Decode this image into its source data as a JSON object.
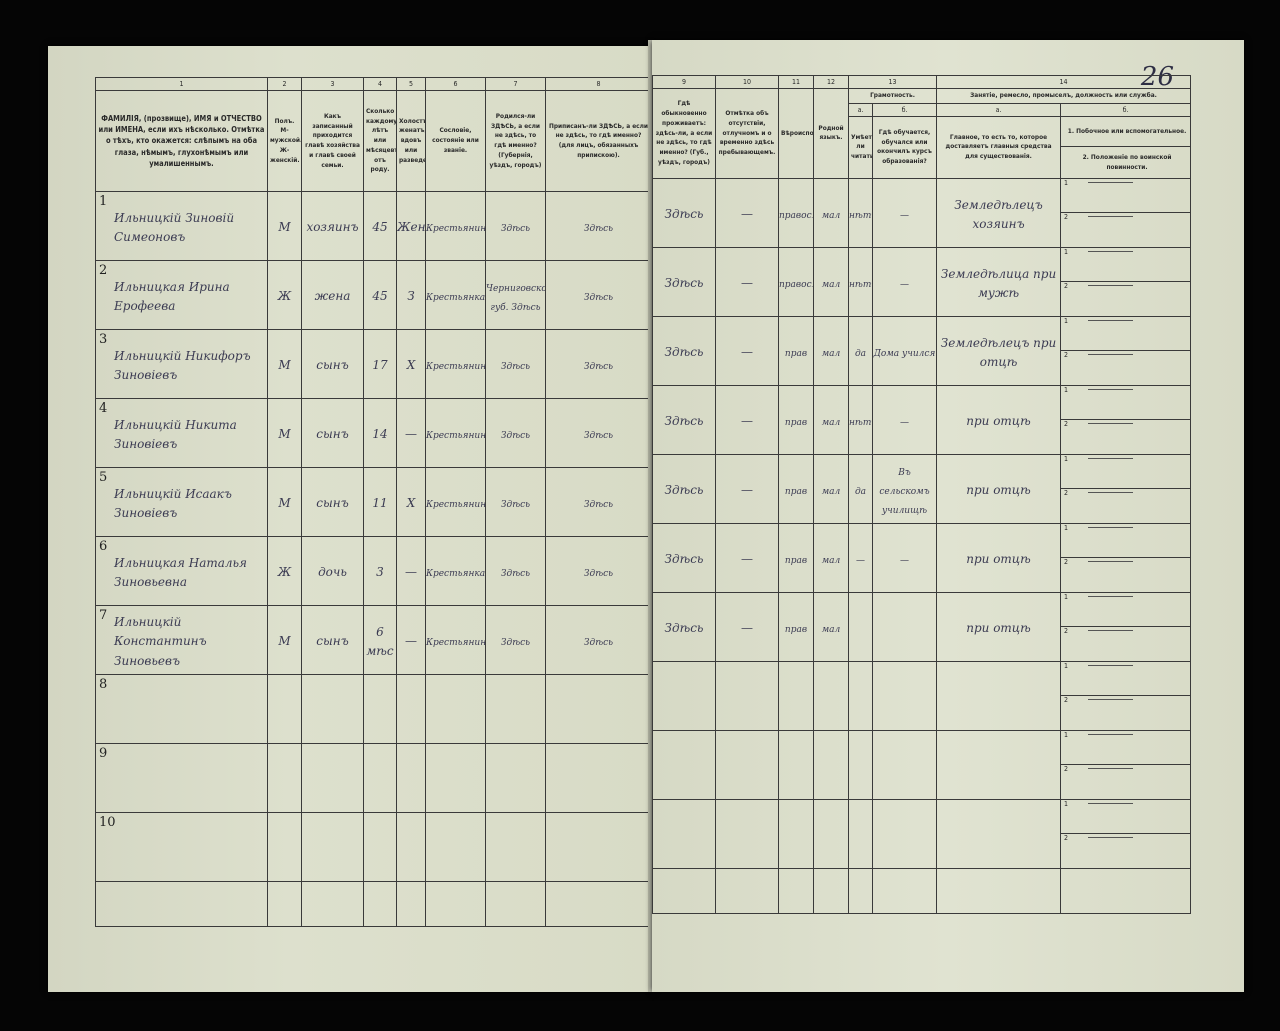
{
  "page_number": "26",
  "left_headers": [
    {
      "num": "1",
      "text": "ФАМИЛIЯ, (прозвище), ИМЯ и ОТЧЕСТВО или ИМЕНА, если ихъ нѣсколько. Отмѣтка о тѣхъ, кто окажется: слѣпымъ на оба глаза, нѣмымъ, глухонѣмымъ или умалишеннымъ."
    },
    {
      "num": "2",
      "text": "Полъ. М-мужской. Ж-женскiй."
    },
    {
      "num": "3",
      "text": "Какъ записанный приходится главѣ хозяйства и главѣ своей семьи."
    },
    {
      "num": "4",
      "text": "Сколько каждому лѣтъ или мѣсяцевъ отъ роду."
    },
    {
      "num": "5",
      "text": "Холостъ, женатъ, вдовъ или разведенъ."
    },
    {
      "num": "6",
      "text": "Сословiе, состоянiе или званiе."
    },
    {
      "num": "7",
      "text": "Родился-ли ЗДѢСЬ, а если не здѣсь, то гдѣ именно? (Губернiя, уѣздъ, городъ)"
    },
    {
      "num": "8",
      "text": "Приписанъ-ли ЗДѢСЬ, а если не здѣсь, то гдѣ именно? (для лицъ, обязанныхъ припискою)."
    }
  ],
  "right_headers": {
    "c9": {
      "num": "9",
      "text": "Гдѣ обыкновенно проживаетъ: здѣсь-ли, а если не здѣсь, то гдѣ именно? (Губ., уѣздъ, городъ)"
    },
    "c10": {
      "num": "10",
      "text": "Отмѣтка объ отсутствiи, отлучномъ и о временно здѣсь пребывающемъ."
    },
    "c11": {
      "num": "11",
      "text": "Вѣроисповѣданiе."
    },
    "c12": {
      "num": "12",
      "text": "Родной языкъ."
    },
    "c13": {
      "num": "13",
      "text": "Грамотность.",
      "a_label": "а.",
      "a_text": "Умѣетъ-ли читать?",
      "b_label": "б.",
      "b_text": "Гдѣ обучается, обучался или окончилъ курсъ образованiя?"
    },
    "c14": {
      "num": "14",
      "text": "Занятiе, ремесло, промыселъ, должность или служба.",
      "a_label": "а.",
      "a_text": "Главное, то есть то, которое доставляетъ главныя средства для существованiя.",
      "b_label": "б.",
      "b_text1": "1. Побочное или вспомогательное.",
      "b_text2": "2. Положенiе по воинской повинности."
    }
  },
  "rows": [
    {
      "n": "1",
      "name": "Ильницкiй Зиновiй Симеоновъ",
      "sex": "М",
      "relation": "хозяинъ",
      "age": "45",
      "marital": "Жен",
      "estate": "Крестьянинъ",
      "born": "Здѣсь",
      "registered": "Здѣсь",
      "lives": "Здѣсь",
      "absence": "—",
      "religion": "правосл",
      "language": "мал",
      "literate": "нѣтъ",
      "education": "—",
      "occupation": "Земледѣлецъ хозяинъ",
      "sub1": "1",
      "sub2": "2"
    },
    {
      "n": "2",
      "name": "Ильницкая Ирина Ерофеева",
      "sex": "Ж",
      "relation": "жена",
      "age": "45",
      "marital": "З",
      "estate": "Крестьянка",
      "born": "Черниговской губ. Здѣсь",
      "registered": "Здѣсь",
      "lives": "Здѣсь",
      "absence": "—",
      "religion": "правосл",
      "language": "мал",
      "literate": "нѣтъ",
      "education": "—",
      "occupation": "Земледѣлица при мужѣ",
      "sub1": "1",
      "sub2": "2"
    },
    {
      "n": "3",
      "name": "Ильницкiй Никифоръ Зиновiевъ",
      "sex": "М",
      "relation": "сынъ",
      "age": "17",
      "marital": "Х",
      "estate": "Крестьянинъ",
      "born": "Здѣсь",
      "registered": "Здѣсь",
      "lives": "Здѣсь",
      "absence": "—",
      "religion": "прав",
      "language": "мал",
      "literate": "да",
      "education": "Дома учился",
      "occupation": "Земледѣлецъ при отцѣ",
      "sub1": "1",
      "sub2": "2"
    },
    {
      "n": "4",
      "name": "Ильницкiй Никита Зиновiевъ",
      "sex": "М",
      "relation": "сынъ",
      "age": "14",
      "marital": "—",
      "estate": "Крестьянинъ",
      "born": "Здѣсь",
      "registered": "Здѣсь",
      "lives": "Здѣсь",
      "absence": "—",
      "religion": "прав",
      "language": "мал",
      "literate": "нѣтъ",
      "education": "—",
      "occupation": "при отцѣ",
      "sub1": "1",
      "sub2": "2"
    },
    {
      "n": "5",
      "name": "Ильницкiй Исаакъ Зиновiевъ",
      "sex": "М",
      "relation": "сынъ",
      "age": "11",
      "marital": "Х",
      "estate": "Крестьянинъ",
      "born": "Здѣсь",
      "registered": "Здѣсь",
      "lives": "Здѣсь",
      "absence": "—",
      "religion": "прав",
      "language": "мал",
      "literate": "да",
      "education": "Въ сельскомъ училищѣ",
      "occupation": "при отцѣ",
      "sub1": "1",
      "sub2": "2"
    },
    {
      "n": "6",
      "name": "Ильницкая Наталья Зиновьевна",
      "sex": "Ж",
      "relation": "дочь",
      "age": "3",
      "marital": "—",
      "estate": "Крестьянка",
      "born": "Здѣсь",
      "registered": "Здѣсь",
      "lives": "Здѣсь",
      "absence": "—",
      "religion": "прав",
      "language": "мал",
      "literate": "—",
      "education": "—",
      "occupation": "при отцѣ",
      "sub1": "1",
      "sub2": "2"
    },
    {
      "n": "7",
      "name": "Ильницкiй Константинъ Зиновьевъ",
      "sex": "М",
      "relation": "сынъ",
      "age": "6 мѣс",
      "marital": "—",
      "estate": "Крестьянинъ",
      "born": "Здѣсь",
      "registered": "Здѣсь",
      "lives": "Здѣсь",
      "absence": "—",
      "religion": "прав",
      "language": "мал",
      "literate": "",
      "education": "",
      "occupation": "при отцѣ",
      "sub1": "1",
      "sub2": "2"
    },
    {
      "n": "8",
      "sub1": "1",
      "sub2": "2"
    },
    {
      "n": "9",
      "sub1": "1",
      "sub2": "2"
    },
    {
      "n": "10",
      "sub1": "1",
      "sub2": "2"
    }
  ]
}
